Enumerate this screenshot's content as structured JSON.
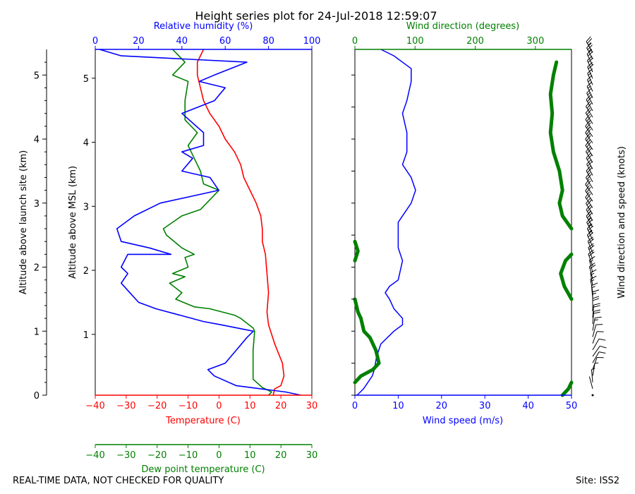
{
  "chart_data": {
    "title": "Height series plot for 24-Jul-2018 12:59:07",
    "footer_left": "REAL-TIME DATA, NOT CHECKED FOR QUALITY",
    "footer_right": "Site: ISS2",
    "colors": {
      "temp": "#ff0000",
      "dew": "#008000",
      "rh": "#0000ff",
      "speed": "#0000ff",
      "dir": "#008000",
      "barb": "#000000"
    },
    "left_panel": {
      "type": "line",
      "y_msl_label": "Altitude above MSL (km)",
      "y_msl_ticks": [
        "1",
        "2",
        "3",
        "4",
        "5"
      ],
      "y_msl_values": [
        0.95,
        1.95,
        2.95,
        3.95,
        4.95
      ],
      "y_launch_label": "Altitude above launch site (km)",
      "y_launch_ticks": [
        "0",
        "1",
        "2",
        "3",
        "4",
        "5"
      ],
      "ylim": [
        0,
        5.4
      ],
      "temperature": {
        "xlabel": "Temperature (C)",
        "xlim": [
          -40,
          30
        ],
        "ticks": [
          "−40",
          "−30",
          "−20",
          "−10",
          "0",
          "10",
          "20",
          "30"
        ]
      },
      "dewpoint": {
        "xlabel": "Dew point temperature (C)",
        "xlim": [
          -40,
          30
        ],
        "ticks": [
          "−40",
          "−30",
          "−20",
          "−10",
          "0",
          "10",
          "20",
          "30"
        ]
      },
      "humidity": {
        "xlabel": "Relative humidity (%)",
        "xlim": [
          0,
          100
        ],
        "ticks": [
          "0",
          "20",
          "40",
          "60",
          "80",
          "100"
        ]
      },
      "series": [
        {
          "name": "Temperature",
          "axis": "temperature",
          "points": [
            [
              17.5,
              0.0
            ],
            [
              18,
              0.1
            ],
            [
              20,
              0.15
            ],
            [
              21,
              0.3
            ],
            [
              20.5,
              0.5
            ],
            [
              18,
              0.8
            ],
            [
              16,
              1.1
            ],
            [
              15.5,
              1.3
            ],
            [
              16,
              1.6
            ],
            [
              15.5,
              1.9
            ],
            [
              15,
              2.2
            ],
            [
              14,
              2.4
            ],
            [
              14,
              2.6
            ],
            [
              13.5,
              2.8
            ],
            [
              12,
              3.0
            ],
            [
              10,
              3.2
            ],
            [
              8,
              3.4
            ],
            [
              7,
              3.6
            ],
            [
              5,
              3.8
            ],
            [
              2,
              4.0
            ],
            [
              0,
              4.2
            ],
            [
              -3,
              4.4
            ],
            [
              -5,
              4.6
            ],
            [
              -6,
              4.8
            ],
            [
              -7,
              5.0
            ],
            [
              -7,
              5.2
            ],
            [
              -5,
              5.4
            ]
          ]
        },
        {
          "name": "Dew point",
          "axis": "dewpoint",
          "points": [
            [
              16,
              0.0
            ],
            [
              17,
              0.05
            ],
            [
              14,
              0.12
            ],
            [
              11,
              0.25
            ],
            [
              11,
              0.5
            ],
            [
              11,
              0.7
            ],
            [
              11.5,
              1.0
            ],
            [
              11,
              1.05
            ],
            [
              7,
              1.2
            ],
            [
              5,
              1.25
            ],
            [
              -3,
              1.35
            ],
            [
              -8,
              1.38
            ],
            [
              -14,
              1.5
            ],
            [
              -12,
              1.6
            ],
            [
              -16,
              1.75
            ],
            [
              -11,
              1.85
            ],
            [
              -15,
              1.9
            ],
            [
              -10,
              2.0
            ],
            [
              -11,
              2.15
            ],
            [
              -8,
              2.2
            ],
            [
              -12,
              2.3
            ],
            [
              -17,
              2.5
            ],
            [
              -18,
              2.6
            ],
            [
              -12,
              2.8
            ],
            [
              -6,
              2.9
            ],
            [
              0,
              3.2
            ],
            [
              -5,
              3.3
            ],
            [
              -6,
              3.5
            ],
            [
              -8,
              3.7
            ],
            [
              -10,
              3.9
            ],
            [
              -7,
              4.1
            ],
            [
              -11,
              4.3
            ],
            [
              -11,
              4.6
            ],
            [
              -10,
              4.9
            ],
            [
              -15,
              5.0
            ],
            [
              -11,
              5.2
            ],
            [
              -15,
              5.4
            ]
          ]
        },
        {
          "name": "Relative humidity",
          "axis": "humidity",
          "points": [
            [
              95,
              0.0
            ],
            [
              88,
              0.05
            ],
            [
              65,
              0.15
            ],
            [
              55,
              0.3
            ],
            [
              52,
              0.4
            ],
            [
              60,
              0.5
            ],
            [
              65,
              0.7
            ],
            [
              70,
              0.9
            ],
            [
              73,
              1.0
            ],
            [
              58,
              1.1
            ],
            [
              50,
              1.15
            ],
            [
              28,
              1.35
            ],
            [
              20,
              1.45
            ],
            [
              16,
              1.6
            ],
            [
              12,
              1.75
            ],
            [
              15,
              1.9
            ],
            [
              12,
              2.0
            ],
            [
              15,
              2.2
            ],
            [
              35,
              2.2
            ],
            [
              25,
              2.3
            ],
            [
              12,
              2.4
            ],
            [
              10,
              2.6
            ],
            [
              14,
              2.7
            ],
            [
              18,
              2.8
            ],
            [
              30,
              3.0
            ],
            [
              57,
              3.2
            ],
            [
              53,
              3.4
            ],
            [
              40,
              3.5
            ],
            [
              45,
              3.7
            ],
            [
              40,
              3.8
            ],
            [
              50,
              3.9
            ],
            [
              50,
              4.1
            ],
            [
              40,
              4.4
            ],
            [
              55,
              4.6
            ],
            [
              60,
              4.8
            ],
            [
              48,
              4.9
            ],
            [
              55,
              5.0
            ],
            [
              70,
              5.2
            ],
            [
              12,
              5.3
            ],
            [
              2,
              5.4
            ]
          ]
        }
      ]
    },
    "right_panel": {
      "type": "line",
      "speed": {
        "xlabel": "Wind speed (m/s)",
        "xlim": [
          0,
          50
        ],
        "ticks": [
          "0",
          "10",
          "20",
          "30",
          "40",
          "50"
        ]
      },
      "direction": {
        "xlabel": "Wind direction (degrees)",
        "xlim": [
          0,
          360
        ],
        "ticks": [
          "0",
          "100",
          "200",
          "300"
        ]
      },
      "ylim": [
        0,
        5.4
      ],
      "series": [
        {
          "name": "Wind speed",
          "axis": "speed",
          "points": [
            [
              0.5,
              0.0
            ],
            [
              2,
              0.1
            ],
            [
              4,
              0.3
            ],
            [
              4.5,
              0.4
            ],
            [
              5,
              0.6
            ],
            [
              6,
              0.8
            ],
            [
              9,
              1.0
            ],
            [
              11,
              1.1
            ],
            [
              11,
              1.2
            ],
            [
              9,
              1.35
            ],
            [
              8,
              1.5
            ],
            [
              7,
              1.6
            ],
            [
              8,
              1.7
            ],
            [
              10,
              1.8
            ],
            [
              11,
              2.1
            ],
            [
              10,
              2.3
            ],
            [
              10,
              2.6
            ],
            [
              10,
              2.7
            ],
            [
              11,
              2.8
            ],
            [
              13,
              3.0
            ],
            [
              14,
              3.2
            ],
            [
              13,
              3.4
            ],
            [
              11,
              3.6
            ],
            [
              12,
              3.8
            ],
            [
              12,
              4.0
            ],
            [
              12,
              4.1
            ],
            [
              11,
              4.4
            ],
            [
              12,
              4.6
            ],
            [
              13,
              4.9
            ],
            [
              13,
              5.1
            ],
            [
              9,
              5.3
            ],
            [
              6,
              5.4
            ]
          ]
        },
        {
          "name": "Wind direction",
          "axis": "direction",
          "segments": [
            [
              [
                345,
                0.0
              ],
              [
                355,
                0.1
              ],
              [
                360,
                0.2
              ]
            ],
            [
              [
                0,
                0.2
              ],
              [
                10,
                0.3
              ],
              [
                30,
                0.4
              ],
              [
                40,
                0.5
              ],
              [
                35,
                0.7
              ],
              [
                25,
                0.9
              ],
              [
                15,
                1.0
              ],
              [
                10,
                1.2
              ],
              [
                5,
                1.3
              ],
              [
                0,
                1.5
              ]
            ],
            [
              [
                0,
                2.1
              ],
              [
                5,
                2.25
              ],
              [
                0,
                2.4
              ]
            ],
            [
              [
                360,
                2.6
              ],
              [
                345,
                2.8
              ],
              [
                340,
                3.0
              ],
              [
                345,
                3.2
              ],
              [
                340,
                3.5
              ],
              [
                330,
                3.8
              ],
              [
                325,
                4.1
              ],
              [
                328,
                4.4
              ],
              [
                325,
                4.7
              ],
              [
                330,
                5.0
              ],
              [
                335,
                5.2
              ]
            ],
            [
              [
                360,
                1.5
              ],
              [
                348,
                1.7
              ],
              [
                342,
                1.9
              ],
              [
                350,
                2.1
              ],
              [
                360,
                2.2
              ]
            ]
          ]
        }
      ]
    },
    "barbs": {
      "ylabel": "Wind direction and speed (knots)",
      "speed_knots": [
        0,
        2,
        4,
        6,
        8,
        10,
        10,
        10,
        9,
        12,
        16,
        18,
        20,
        18,
        16,
        16,
        15,
        17,
        18,
        17,
        19,
        21,
        22,
        22,
        25,
        27,
        25,
        23,
        22,
        21,
        22,
        21,
        20,
        20,
        19,
        20,
        20,
        21,
        23,
        24,
        25,
        24,
        22,
        20,
        18,
        16,
        14,
        14,
        16,
        18,
        20,
        22,
        23,
        24
      ],
      "direction_deg": [
        340,
        345,
        355,
        10,
        20,
        30,
        35,
        30,
        20,
        15,
        10,
        5,
        5,
        0,
        0,
        355,
        350,
        350,
        345,
        345,
        340,
        340,
        338,
        335,
        335,
        332,
        330,
        330,
        328,
        325,
        325,
        325,
        328,
        330,
        332,
        330,
        328,
        326,
        325,
        325,
        325,
        326,
        327,
        328,
        330,
        332,
        334,
        335,
        336,
        336,
        335,
        334,
        332,
        330
      ]
    }
  }
}
